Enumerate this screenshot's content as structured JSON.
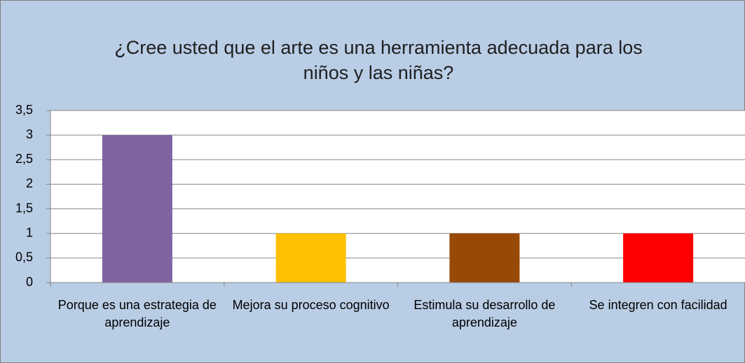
{
  "chart_data": {
    "type": "bar",
    "title": "¿Cree usted que el arte es una herramienta adecuada para los niños y las niñas?",
    "categories": [
      "Porque es una estrategia de aprendizaje",
      "Mejora su proceso cognitivo",
      "Estimula su desarrollo de aprendizaje",
      "Se integren con facilidad"
    ],
    "values": [
      3,
      1,
      1,
      1
    ],
    "colors": [
      "#8064a2",
      "#ffc000",
      "#984807",
      "#ff0000"
    ],
    "ylim": [
      0,
      3.5
    ],
    "yticks": [
      0,
      {
        "value": 0.5,
        "label": "0,5"
      },
      1,
      {
        "value": 1.5,
        "label": "1,5"
      },
      2,
      {
        "value": 2.5,
        "label": "2,5"
      },
      3,
      {
        "value": 3.5,
        "label": "3,5"
      }
    ],
    "grid": true
  }
}
